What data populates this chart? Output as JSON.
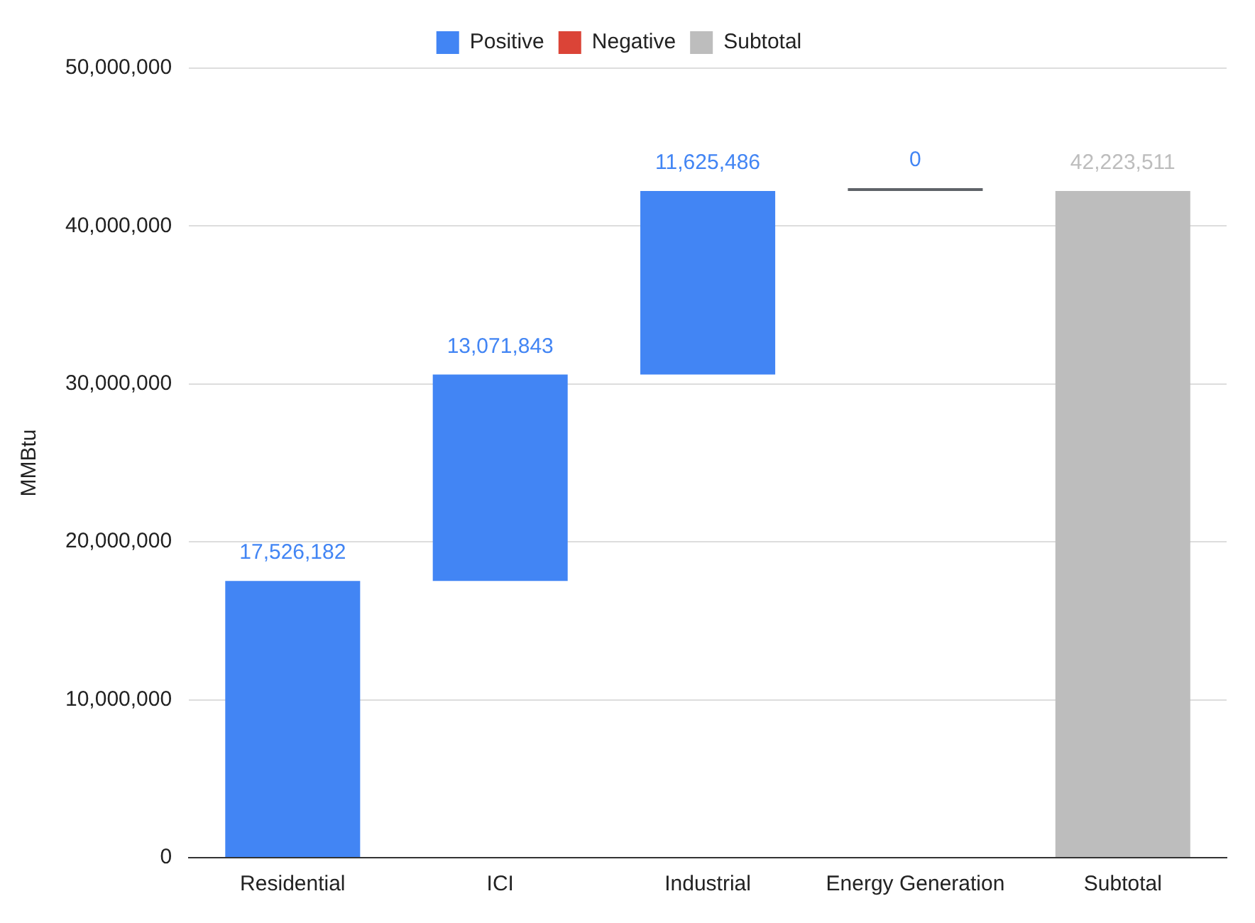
{
  "chart_data": {
    "type": "bar",
    "ylabel": "MMBtu",
    "categories": [
      "Residential",
      "ICI",
      "Industrial",
      "Energy Generation",
      "Subtotal"
    ],
    "series": [
      {
        "name": "Positive",
        "color": "#4285f4",
        "colors": [
          "#4285f4",
          "#4285f4",
          "#4285f4",
          "#5f6368",
          "#4285f4"
        ],
        "values": [
          17526182,
          13071843,
          11625486,
          0,
          null
        ],
        "base": [
          0,
          17526182,
          30598025,
          42223511,
          null
        ],
        "value_labels": [
          "17,526,182",
          "13,071,843",
          "11,625,486",
          "0",
          null
        ]
      },
      {
        "name": "Negative",
        "color": "#db4437",
        "values": [
          null,
          null,
          null,
          null,
          null
        ]
      },
      {
        "name": "Subtotal",
        "color": "#bdbdbd",
        "values": [
          null,
          null,
          null,
          null,
          42223511
        ],
        "base": [
          null,
          null,
          null,
          null,
          0
        ],
        "value_labels": [
          null,
          null,
          null,
          null,
          "42,223,511"
        ]
      }
    ],
    "ylim": [
      0,
      50000000
    ],
    "yticks": [
      {
        "value": 0,
        "label": "0"
      },
      {
        "value": 10000000,
        "label": "10,000,000"
      },
      {
        "value": 20000000,
        "label": "20,000,000"
      },
      {
        "value": 30000000,
        "label": "30,000,000"
      },
      {
        "value": 40000000,
        "label": "40,000,000"
      },
      {
        "value": 50000000,
        "label": "50,000,000"
      }
    ],
    "grid": "y",
    "legend": "top"
  }
}
